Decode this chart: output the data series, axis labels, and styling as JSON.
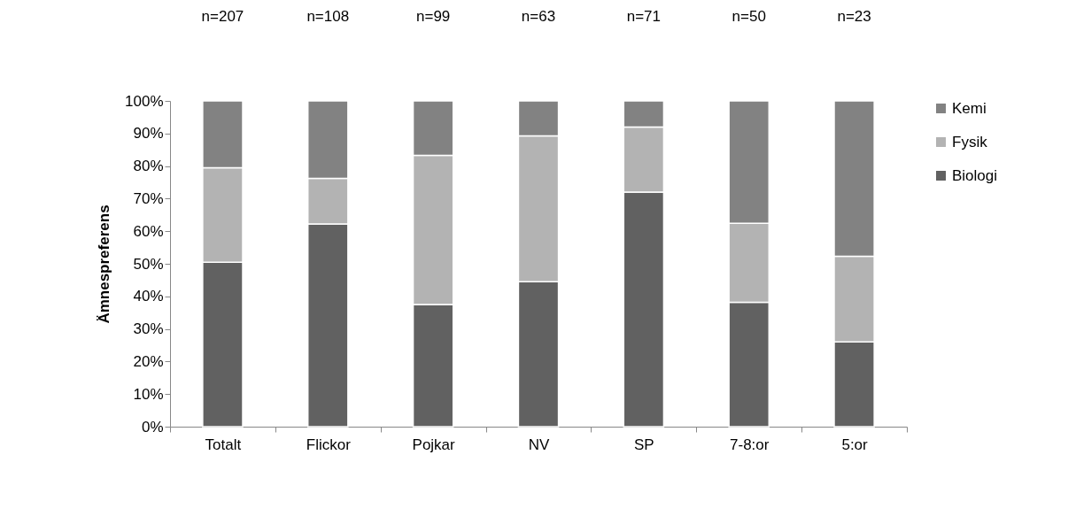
{
  "chart_data": {
    "type": "bar",
    "stacked": true,
    "ylabel": "Ämnespreferens",
    "categories": [
      "Totalt",
      "Flickor",
      "Pojkar",
      "NV",
      "SP",
      "7-8:or",
      "5:or"
    ],
    "series": [
      {
        "name": "Biologi",
        "color": "#616161",
        "values": [
          50.5,
          62.2,
          37.5,
          44.5,
          72.0,
          38.2,
          26.0
        ]
      },
      {
        "name": "Fysik",
        "color": "#b3b3b3",
        "values": [
          29.0,
          14.0,
          45.8,
          44.8,
          20.0,
          24.2,
          26.3
        ]
      },
      {
        "name": "Kemi",
        "color": "#828282",
        "values": [
          20.5,
          23.8,
          16.7,
          10.7,
          8.0,
          37.6,
          47.7
        ]
      }
    ],
    "ylim": [
      0,
      100
    ],
    "yticks": [
      {
        "value": 0,
        "label": "0%"
      },
      {
        "value": 10,
        "label": "10%"
      },
      {
        "value": 20,
        "label": "20%"
      },
      {
        "value": 30,
        "label": "30%"
      },
      {
        "value": 40,
        "label": "40%"
      },
      {
        "value": 50,
        "label": "50%"
      },
      {
        "value": 60,
        "label": "60%"
      },
      {
        "value": 70,
        "label": "70%"
      },
      {
        "value": 80,
        "label": "80%"
      },
      {
        "value": 90,
        "label": "90%"
      },
      {
        "value": 100,
        "label": "100%"
      }
    ],
    "legend": "right",
    "grid": false,
    "annotations": [
      "n=207",
      "n=108",
      "n=99",
      "n=63",
      "n=71",
      "n=50",
      "n=23"
    ]
  }
}
